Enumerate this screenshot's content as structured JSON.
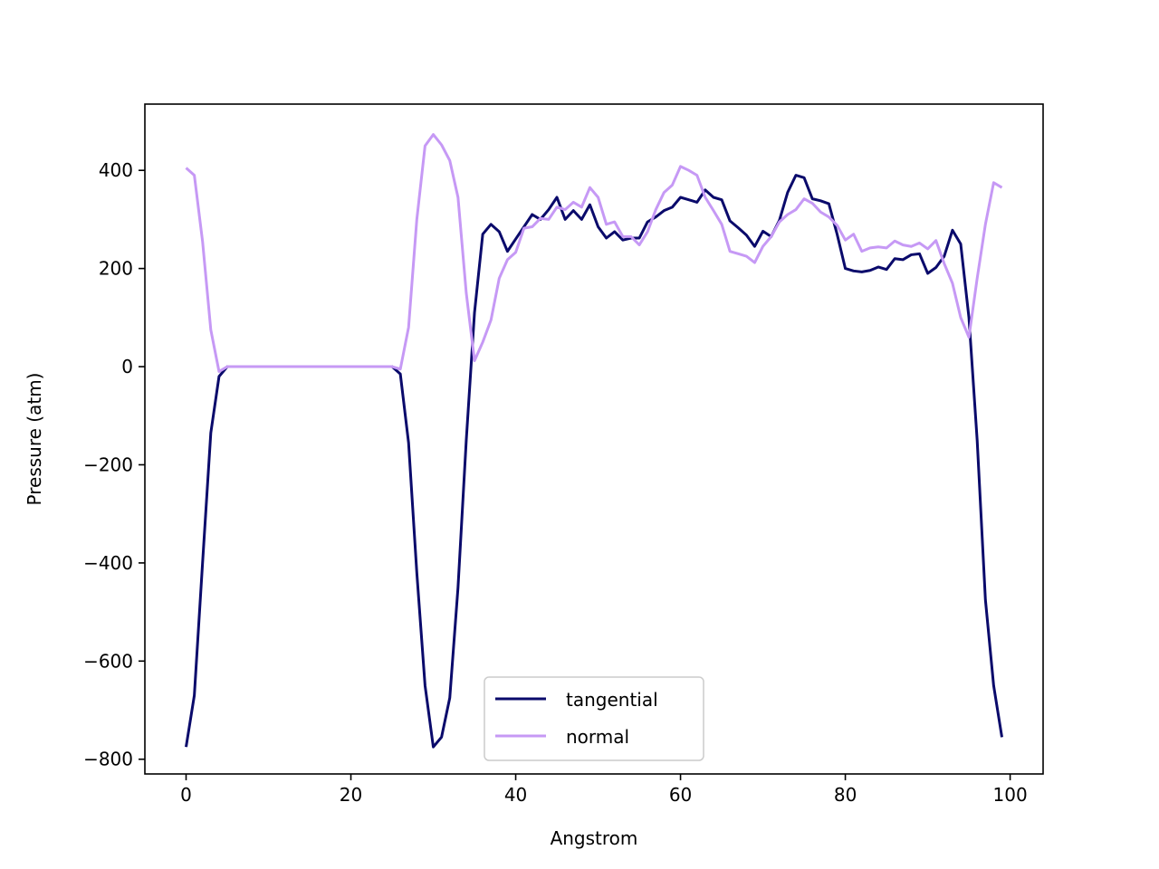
{
  "chart_data": {
    "type": "line",
    "xlabel": "Angstrom",
    "ylabel": "Pressure (atm)",
    "xlim": [
      -5,
      104
    ],
    "ylim": [
      -830,
      535
    ],
    "xticks": [
      0,
      20,
      40,
      60,
      80,
      100
    ],
    "xtick_labels": [
      "0",
      "20",
      "40",
      "60",
      "80",
      "100"
    ],
    "yticks": [
      -800,
      -600,
      -400,
      -200,
      0,
      200,
      400
    ],
    "ytick_labels": [
      "−800",
      "−600",
      "−400",
      "−200",
      "0",
      "200",
      "400"
    ],
    "grid": false,
    "legend_position": "lower-center",
    "x": [
      0,
      1,
      2,
      3,
      4,
      5,
      6,
      7,
      8,
      9,
      10,
      11,
      12,
      13,
      14,
      15,
      16,
      17,
      18,
      19,
      20,
      21,
      22,
      23,
      24,
      25,
      26,
      27,
      28,
      29,
      30,
      31,
      32,
      33,
      34,
      35,
      36,
      37,
      38,
      39,
      40,
      41,
      42,
      43,
      44,
      45,
      46,
      47,
      48,
      49,
      50,
      51,
      52,
      53,
      54,
      55,
      56,
      57,
      58,
      59,
      60,
      61,
      62,
      63,
      64,
      65,
      66,
      67,
      68,
      69,
      70,
      71,
      72,
      73,
      74,
      75,
      76,
      77,
      78,
      79,
      80,
      81,
      82,
      83,
      84,
      85,
      86,
      87,
      88,
      89,
      90,
      91,
      92,
      93,
      94,
      95,
      96,
      97,
      98,
      99
    ],
    "series": [
      {
        "name": "tangential",
        "color": "#0a0a6b",
        "values": [
          -775,
          -670,
          -400,
          -135,
          -20,
          0,
          0,
          0,
          0,
          0,
          0,
          0,
          0,
          0,
          0,
          0,
          0,
          0,
          0,
          0,
          0,
          0,
          0,
          0,
          0,
          0,
          -15,
          -155,
          -420,
          -650,
          -775,
          -755,
          -675,
          -450,
          -150,
          110,
          270,
          290,
          275,
          235,
          260,
          285,
          310,
          300,
          320,
          345,
          300,
          318,
          300,
          330,
          285,
          262,
          275,
          258,
          262,
          262,
          295,
          305,
          318,
          325,
          345,
          340,
          335,
          360,
          345,
          340,
          297,
          283,
          268,
          245,
          276,
          265,
          298,
          355,
          390,
          385,
          342,
          338,
          332,
          270,
          200,
          195,
          193,
          196,
          203,
          198,
          220,
          218,
          228,
          230,
          190,
          202,
          225,
          278,
          250,
          100,
          -150,
          -475,
          -650,
          -755
        ]
      },
      {
        "name": "normal",
        "color": "#c699f5",
        "values": [
          405,
          390,
          255,
          75,
          -10,
          0,
          0,
          0,
          0,
          0,
          0,
          0,
          0,
          0,
          0,
          0,
          0,
          0,
          0,
          0,
          0,
          0,
          0,
          0,
          0,
          0,
          -5,
          80,
          300,
          450,
          473,
          452,
          420,
          345,
          150,
          12,
          50,
          95,
          180,
          218,
          233,
          282,
          285,
          302,
          300,
          325,
          320,
          335,
          325,
          365,
          345,
          290,
          295,
          265,
          265,
          248,
          275,
          320,
          355,
          370,
          408,
          400,
          390,
          345,
          318,
          290,
          235,
          230,
          225,
          212,
          245,
          265,
          295,
          310,
          320,
          342,
          333,
          315,
          305,
          288,
          258,
          270,
          235,
          242,
          244,
          242,
          256,
          248,
          245,
          252,
          240,
          257,
          210,
          170,
          100,
          60,
          180,
          290,
          375,
          365
        ]
      }
    ]
  }
}
